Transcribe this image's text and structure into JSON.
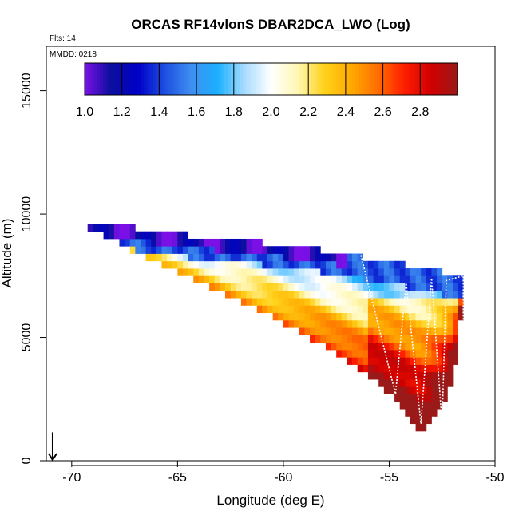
{
  "chart_data": {
    "type": "heatmap",
    "title": "ORCAS RF14vlonS DBAR2DCA_LWO (Log)",
    "notes": [
      "Flts: 14",
      "MMDD: 0218"
    ],
    "xlabel": "Longitude (deg E)",
    "ylabel": "Altitude (m)",
    "xlim": [
      -71.2,
      -50
    ],
    "ylim": [
      0,
      16800
    ],
    "x_ticks": [
      -70,
      -65,
      -60,
      -55,
      -50
    ],
    "y_ticks": [
      0,
      5000,
      10000,
      15000
    ],
    "grid": false,
    "colorbar": {
      "placement": "top-left inside plot",
      "range": [
        1.0,
        3.0
      ],
      "ticks": [
        1.0,
        1.2,
        1.4,
        1.6,
        1.8,
        2.0,
        2.2,
        2.4,
        2.6,
        2.8
      ],
      "colors": [
        "#7a10e6",
        "#0b0f9e",
        "#0000c8",
        "#1d4ee0",
        "#3f8ff0",
        "#1ab0ff",
        "#a8dcff",
        "#ffffff",
        "#fff7b3",
        "#ffd21a",
        "#ffaa00",
        "#ff6e00",
        "#ff1e00",
        "#d00000",
        "#9a1a1a"
      ]
    },
    "top_boundary": [
      [
        -69.5,
        9600
      ],
      [
        -67,
        9450
      ],
      [
        -65,
        9200
      ],
      [
        -62,
        8950
      ],
      [
        -59,
        8650
      ],
      [
        -56.5,
        8300
      ],
      [
        -54,
        7900
      ],
      [
        -51.5,
        7500
      ]
    ],
    "bottom_boundary": [
      [
        -69.5,
        9600
      ],
      [
        -67.5,
        8700
      ],
      [
        -65.5,
        7900
      ],
      [
        -63,
        6900
      ],
      [
        -60.5,
        5800
      ],
      [
        -58,
        4600
      ],
      [
        -55.8,
        3300
      ],
      [
        -54.5,
        2300
      ],
      [
        -53.5,
        1000
      ],
      [
        -52.6,
        2000
      ],
      [
        -52,
        3200
      ],
      [
        -51.7,
        4600
      ],
      [
        -51.5,
        7500
      ]
    ],
    "flight_track": [
      [
        -69.2,
        9700
      ],
      [
        -69.2,
        10300
      ],
      [
        -56.5,
        8900
      ],
      [
        -54.7,
        2700
      ],
      [
        -54.2,
        7200
      ],
      [
        -53.5,
        1500
      ],
      [
        -53,
        7400
      ],
      [
        -52.5,
        1500
      ],
      [
        -52.3,
        7300
      ],
      [
        -51.5,
        7500
      ],
      [
        -51.5,
        3000
      ]
    ],
    "start_marker": {
      "x": -70.9,
      "y": 700
    }
  }
}
